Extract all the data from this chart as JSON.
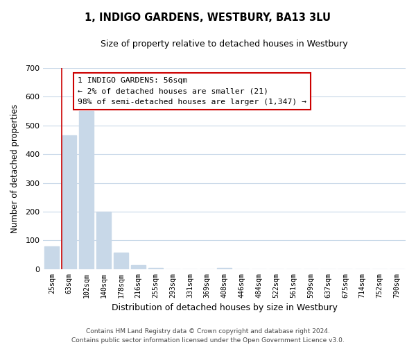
{
  "title": "1, INDIGO GARDENS, WESTBURY, BA13 3LU",
  "subtitle": "Size of property relative to detached houses in Westbury",
  "xlabel": "Distribution of detached houses by size in Westbury",
  "ylabel": "Number of detached properties",
  "bar_labels": [
    "25sqm",
    "63sqm",
    "102sqm",
    "140sqm",
    "178sqm",
    "216sqm",
    "255sqm",
    "293sqm",
    "331sqm",
    "369sqm",
    "408sqm",
    "446sqm",
    "484sqm",
    "522sqm",
    "561sqm",
    "599sqm",
    "637sqm",
    "675sqm",
    "714sqm",
    "752sqm",
    "790sqm"
  ],
  "bar_values": [
    80,
    465,
    550,
    200,
    58,
    15,
    5,
    0,
    0,
    0,
    4,
    0,
    0,
    0,
    0,
    0,
    0,
    0,
    0,
    0,
    0
  ],
  "bar_color": "#c8d8e8",
  "annotation_text": "1 INDIGO GARDENS: 56sqm\n← 2% of detached houses are smaller (21)\n98% of semi-detached houses are larger (1,347) →",
  "annotation_box_color": "#ffffff",
  "annotation_box_edge": "#cc0000",
  "vline_color": "#cc0000",
  "ylim": [
    0,
    700
  ],
  "yticks": [
    0,
    100,
    200,
    300,
    400,
    500,
    600,
    700
  ],
  "footer_line1": "Contains HM Land Registry data © Crown copyright and database right 2024.",
  "footer_line2": "Contains public sector information licensed under the Open Government Licence v3.0.",
  "bg_color": "#ffffff",
  "grid_color": "#c8d8e8"
}
